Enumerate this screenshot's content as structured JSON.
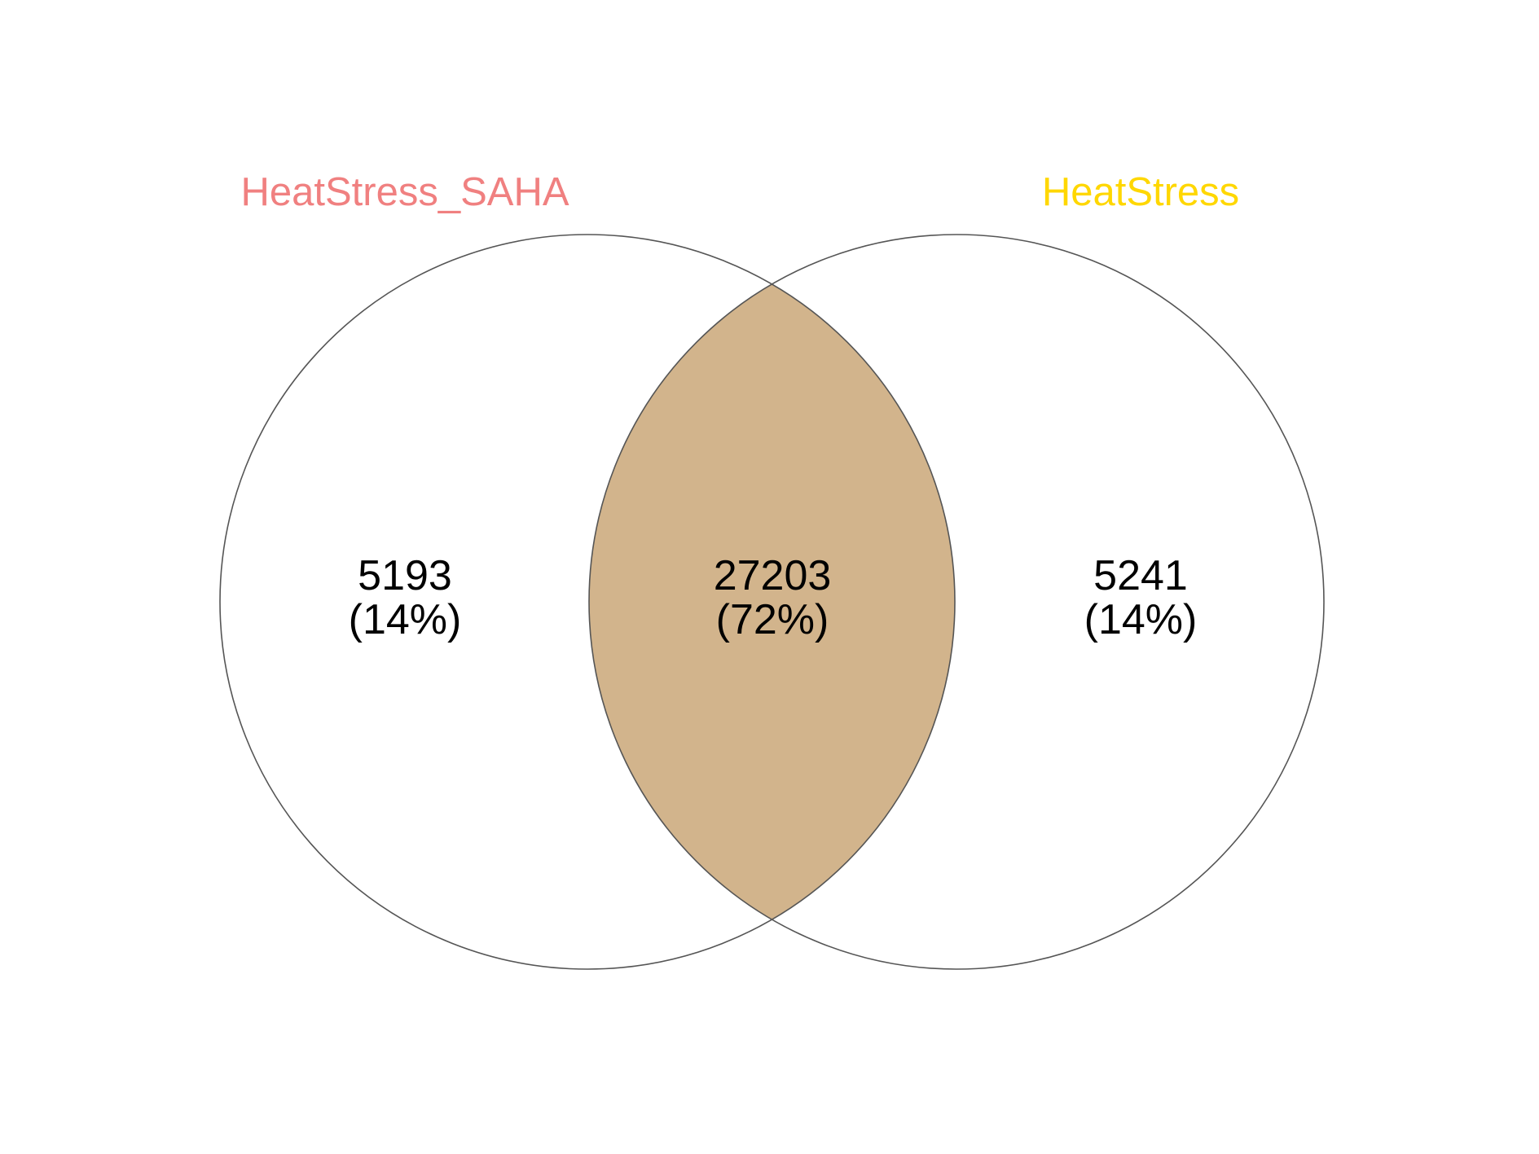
{
  "diagram": {
    "type": "venn",
    "sets": [
      {
        "id": "left",
        "label": "HeatStress_SAHA",
        "color": "#F08080"
      },
      {
        "id": "right",
        "label": "HeatStress",
        "color": "#FFD700"
      }
    ],
    "regions": {
      "left_only": {
        "count": "5193",
        "percent": "(14%)"
      },
      "intersection": {
        "count": "27203",
        "percent": "(72%)"
      },
      "right_only": {
        "count": "5241",
        "percent": "(14%)"
      }
    },
    "intersection_fill": "#D2B48C"
  }
}
